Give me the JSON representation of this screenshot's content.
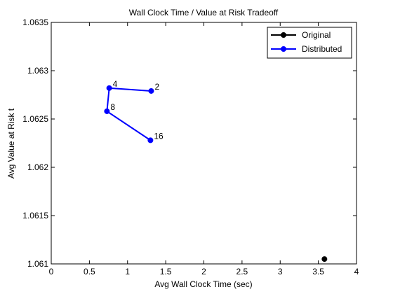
{
  "chart_data": {
    "type": "line",
    "title": "Wall Clock Time / Value at Risk Tradeoff",
    "xlabel": "Avg Wall Clock Time (sec)",
    "ylabel": "Avg Value at Risk t",
    "xlim": [
      0,
      4
    ],
    "ylim": [
      1.061,
      1.0635
    ],
    "x_ticks": [
      "0",
      "0.5",
      "1",
      "1.5",
      "2",
      "2.5",
      "3",
      "3.5",
      "4"
    ],
    "y_ticks": [
      "1.061",
      "1.0615",
      "1.062",
      "1.0625",
      "1.063",
      "1.0635"
    ],
    "grid": false,
    "legend_position": "top-right",
    "series": [
      {
        "name": "Original",
        "color": "#000000",
        "points": [
          {
            "x": 3.58,
            "y": 1.06105
          }
        ]
      },
      {
        "name": "Distributed",
        "color": "#0000ff",
        "points": [
          {
            "x": 1.31,
            "y": 1.06279,
            "label": "2"
          },
          {
            "x": 0.76,
            "y": 1.06282,
            "label": "4"
          },
          {
            "x": 0.73,
            "y": 1.06258,
            "label": "8"
          },
          {
            "x": 1.3,
            "y": 1.06228,
            "label": "16"
          }
        ]
      }
    ]
  }
}
